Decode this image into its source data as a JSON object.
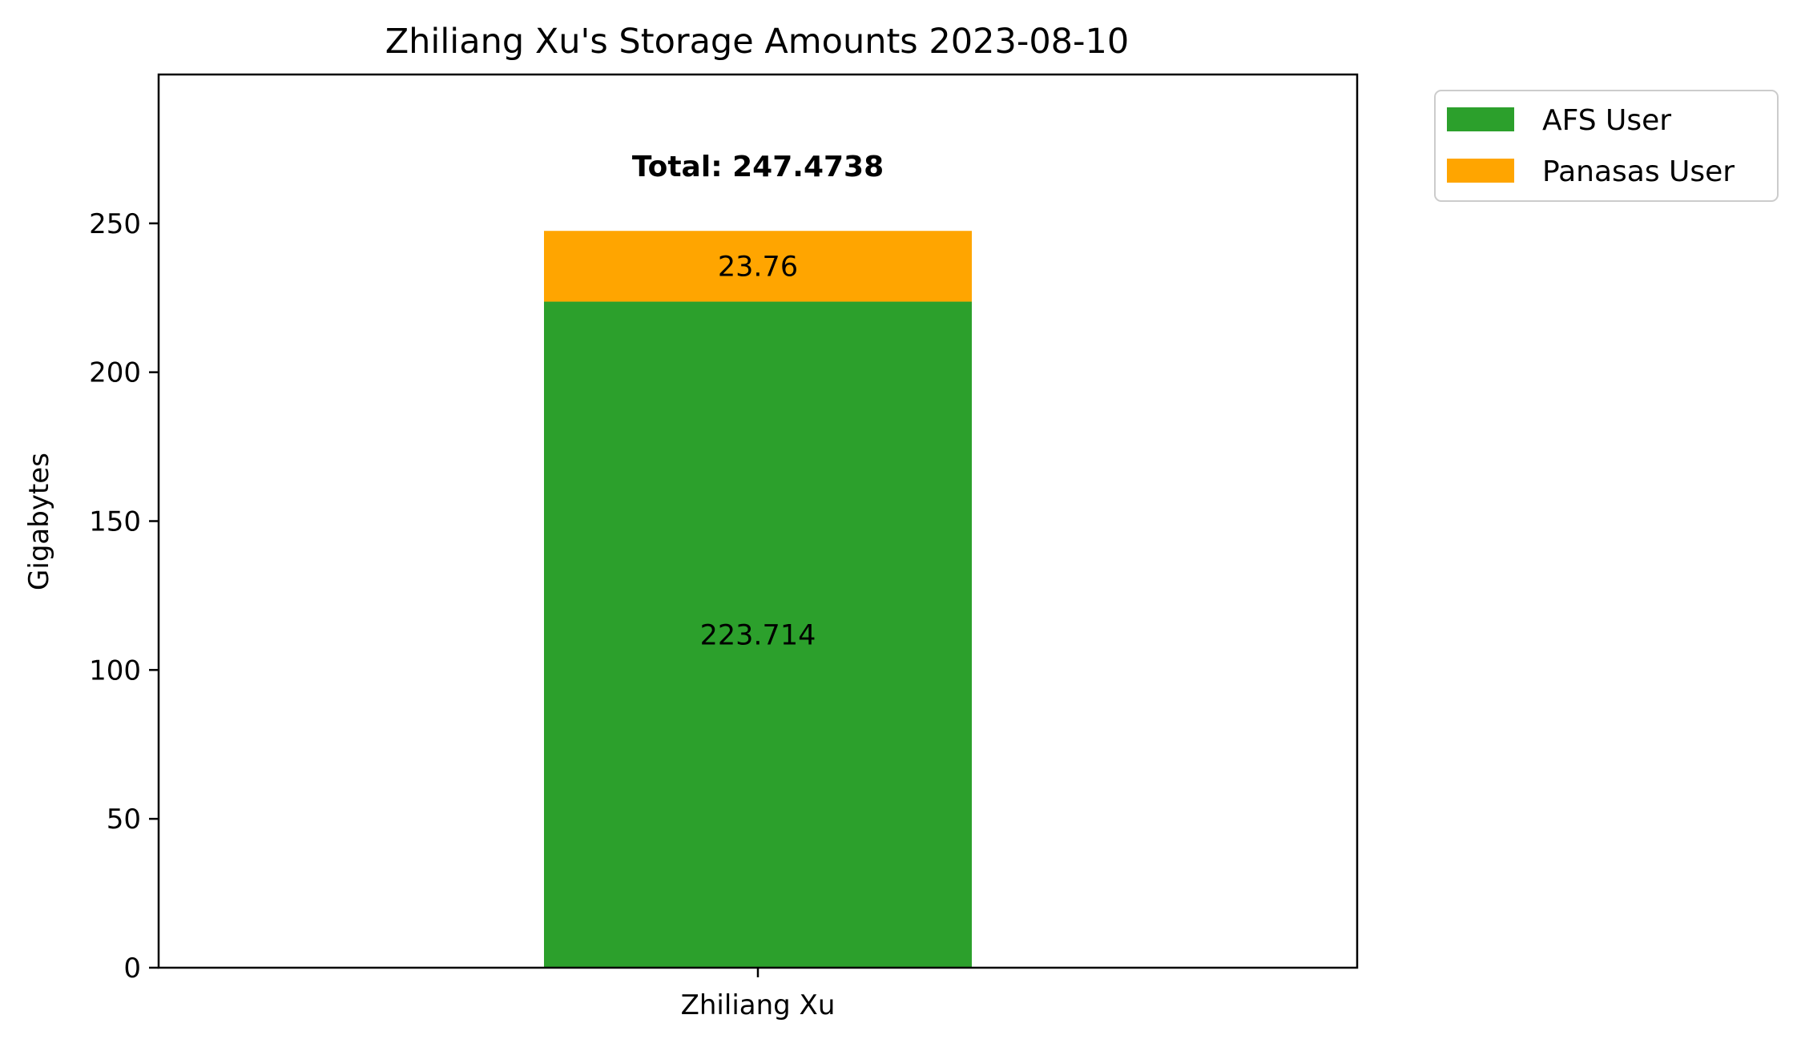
{
  "chart_data": {
    "type": "bar",
    "stacked": true,
    "title": "Zhiliang Xu's Storage Amounts 2023-08-10",
    "xlabel": "",
    "ylabel": "Gigabytes",
    "categories": [
      "Zhiliang Xu"
    ],
    "ylim": [
      0,
      300
    ],
    "yticks": [
      "0",
      "50",
      "100",
      "150",
      "200",
      "250"
    ],
    "series": [
      {
        "name": "AFS User",
        "values": [
          223.714
        ],
        "labels": [
          "223.714"
        ],
        "color": "#2ca02c"
      },
      {
        "name": "Panasas User",
        "values": [
          23.76
        ],
        "labels": [
          "23.76"
        ],
        "color": "#ffa500"
      }
    ],
    "total_label": "Total: 247.4738",
    "legend_position": "outside-top-right",
    "grid": false
  }
}
